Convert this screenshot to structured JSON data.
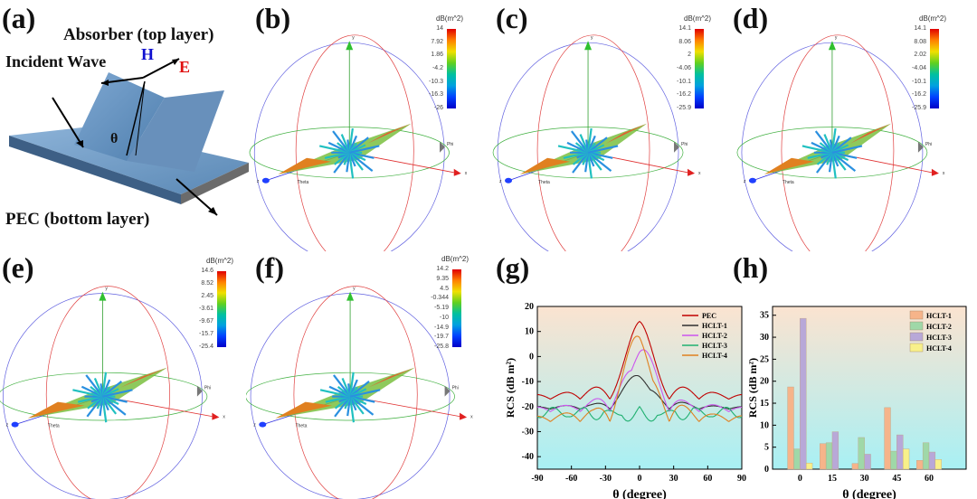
{
  "panels": {
    "a": {
      "label": "(a)",
      "absorber": "Absorber (top layer)",
      "incident": "Incident Wave",
      "pec": "PEC (bottom layer)",
      "H": "H",
      "E": "E",
      "theta": "θ"
    },
    "b": {
      "label": "(b)",
      "unit": "dB(m^2)",
      "ticks": [
        "14",
        "7.92",
        "1.86",
        "-4.2",
        "-10.3",
        "-16.3",
        "-26"
      ]
    },
    "c": {
      "label": "(c)",
      "unit": "dB(m^2)",
      "ticks": [
        "14.1",
        "8.06",
        "2",
        "-4.06",
        "-10.1",
        "-16.2",
        "-25.9"
      ]
    },
    "d": {
      "label": "(d)",
      "unit": "dB(m^2)",
      "ticks": [
        "14.1",
        "8.08",
        "2.02",
        "-4.04",
        "-10.1",
        "-16.2",
        "-25.9"
      ]
    },
    "e": {
      "label": "(e)",
      "unit": "dB(m^2)",
      "ticks": [
        "14.6",
        "8.52",
        "2.45",
        "-3.61",
        "-9.67",
        "-15.7",
        "-25.4"
      ]
    },
    "f": {
      "label": "(f)",
      "unit": "dB(m^2)",
      "ticks": [
        "14.2",
        "9.35",
        "4.5",
        "-0.344",
        "-5.19",
        "-10",
        "-14.9",
        "-19.7",
        "-25.8"
      ]
    },
    "g": {
      "label": "(g)"
    },
    "h": {
      "label": "(h)"
    },
    "axis_letters": {
      "y": "y",
      "x": "x",
      "z": "z",
      "phi": "Phi",
      "theta": "Theta"
    }
  },
  "chart_data": [
    {
      "type": "line",
      "panel": "(g)",
      "xlabel": "θ (degree)",
      "ylabel": "RCS (dB m²)",
      "xlim": [
        -90,
        90
      ],
      "ylim": [
        -45,
        20
      ],
      "xticks": [
        -90,
        -60,
        -30,
        0,
        30,
        60,
        90
      ],
      "yticks": [
        20,
        10,
        0,
        -10,
        -20,
        -30,
        -40
      ],
      "legend": "top-right",
      "series": [
        {
          "name": "PEC",
          "color": "#c00000",
          "peak": 14,
          "floor": -17
        },
        {
          "name": "HCLT-1",
          "color": "#303030",
          "peak": -5,
          "floor": -21
        },
        {
          "name": "HCLT-2",
          "color": "#cc55ee",
          "peak": 9,
          "floor": -22
        },
        {
          "name": "HCLT-3",
          "color": "#20b070",
          "peak": -21,
          "floor": -22
        },
        {
          "name": "HCLT-4",
          "color": "#e08020",
          "peak": 13,
          "floor": -26
        }
      ]
    },
    {
      "type": "bar",
      "panel": "(h)",
      "xlabel": "θ (degree)",
      "ylabel": "RCS (dB m²)",
      "categories": [
        "0",
        "15",
        "30",
        "45",
        "60"
      ],
      "ylim": [
        0,
        37
      ],
      "yticks": [
        0,
        5,
        10,
        15,
        20,
        25,
        30,
        35
      ],
      "legend": "top-right",
      "series": [
        {
          "name": "HCLT-1",
          "color": "#f6b48a",
          "values": [
            18.7,
            5.8,
            1.3,
            14.0,
            2.0
          ]
        },
        {
          "name": "HCLT-2",
          "color": "#9fd8a8",
          "values": [
            4.6,
            6.0,
            7.2,
            4.1,
            6.0
          ]
        },
        {
          "name": "HCLT-3",
          "color": "#b8a8d8",
          "values": [
            34.3,
            8.5,
            3.4,
            7.8,
            3.9
          ]
        },
        {
          "name": "HCLT-4",
          "color": "#f8f08a",
          "values": [
            1.4,
            0,
            0,
            4.6,
            2.2
          ]
        }
      ]
    }
  ]
}
